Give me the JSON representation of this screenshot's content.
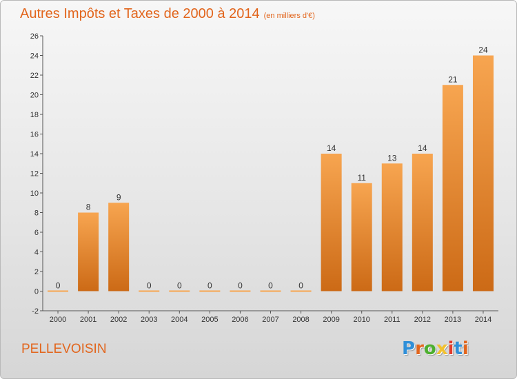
{
  "header": {
    "title": "Autres Impôts et Taxes de 2000 à 2014",
    "subtitle": "(en milliers d'€)"
  },
  "footer": {
    "commune": "PELLEVOISIN",
    "logo_text": "Proxiti",
    "logo_colors": [
      "#2f8fd8",
      "#e2651c",
      "#4caf2e",
      "#f2c12e",
      "#e23c2c",
      "#2f8fd8",
      "#e2651c"
    ]
  },
  "colors": {
    "accent": "#e2651c",
    "bar_top": "#f7a550",
    "bar_bottom": "#cc6a16"
  },
  "chart_data": {
    "type": "bar",
    "categories": [
      "2000",
      "2001",
      "2002",
      "2003",
      "2004",
      "2005",
      "2006",
      "2007",
      "2008",
      "2009",
      "2010",
      "2011",
      "2012",
      "2013",
      "2014"
    ],
    "values": [
      0,
      8,
      9,
      0,
      0,
      0,
      0,
      0,
      0,
      14,
      11,
      13,
      14,
      21,
      24
    ],
    "ylim": [
      -2,
      26
    ],
    "yticks": [
      -2,
      0,
      2,
      4,
      6,
      8,
      10,
      12,
      14,
      16,
      18,
      20,
      22,
      24,
      26
    ],
    "grid": false,
    "legend": "none"
  }
}
